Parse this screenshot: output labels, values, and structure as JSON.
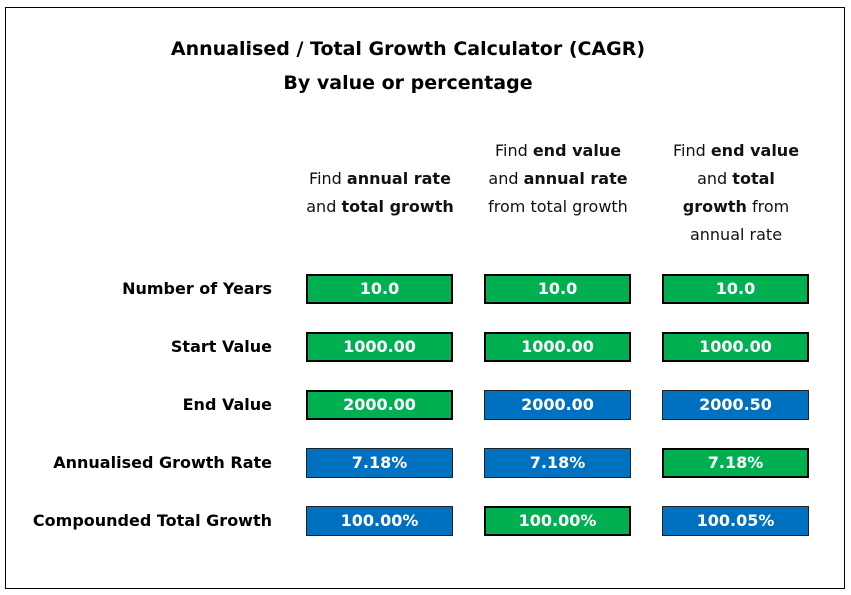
{
  "title_line1": "Annualised / Total Growth Calculator (CAGR)",
  "title_line2": "By value or percentage",
  "colors": {
    "input": "#00B050",
    "output": "#0070C0"
  },
  "columns": [
    {
      "header": [
        [
          "Find ",
          ""
        ],
        [
          "annual rate",
          "b"
        ],
        [
          " and ",
          ""
        ],
        [
          "total",
          "b"
        ],
        [
          " growth",
          "b"
        ]
      ]
    },
    {
      "header": [
        [
          "Find ",
          ""
        ],
        [
          "end value",
          "b"
        ],
        [
          " and ",
          ""
        ],
        [
          "annual rate",
          "b"
        ],
        [
          " from total growth",
          ""
        ]
      ]
    },
    {
      "header": [
        [
          "Find ",
          ""
        ],
        [
          "end value",
          "b"
        ],
        [
          " and ",
          ""
        ],
        [
          "total",
          "b"
        ],
        [
          " growth",
          "b"
        ],
        [
          " from annual rate",
          ""
        ]
      ]
    }
  ],
  "rows": [
    {
      "label": "Number of Years",
      "cells": [
        {
          "value": "10.0",
          "type": "input"
        },
        {
          "value": "10.0",
          "type": "input"
        },
        {
          "value": "10.0",
          "type": "input"
        }
      ]
    },
    {
      "label": "Start Value",
      "cells": [
        {
          "value": "1000.00",
          "type": "input"
        },
        {
          "value": "1000.00",
          "type": "input"
        },
        {
          "value": "1000.00",
          "type": "input"
        }
      ]
    },
    {
      "label": "End Value",
      "cells": [
        {
          "value": "2000.00",
          "type": "input"
        },
        {
          "value": "2000.00",
          "type": "output"
        },
        {
          "value": "2000.50",
          "type": "output"
        }
      ]
    },
    {
      "label": "Annualised Growth Rate",
      "cells": [
        {
          "value": "7.18%",
          "type": "output"
        },
        {
          "value": "7.18%",
          "type": "output"
        },
        {
          "value": "7.18%",
          "type": "input"
        }
      ]
    },
    {
      "label": "Compounded Total Growth",
      "cells": [
        {
          "value": "100.00%",
          "type": "output"
        },
        {
          "value": "100.00%",
          "type": "input"
        },
        {
          "value": "100.05%",
          "type": "output"
        }
      ]
    }
  ]
}
